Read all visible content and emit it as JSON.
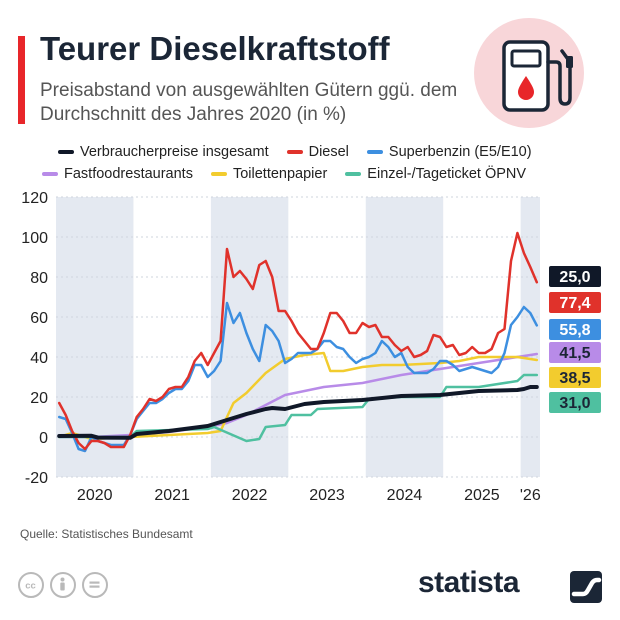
{
  "header": {
    "title": "Teurer Dieselkraftstoff",
    "subtitle": "Preisabstand von ausgewählten Gütern ggü. dem Durchschnitt des Jahres 2020 (in %)"
  },
  "footer": {
    "source": "Quelle: Statistisches Bundesamt",
    "brand": "statista"
  },
  "icons": {
    "hero": "fuel-pump-icon",
    "licenses": [
      "creative-commons-icon",
      "attribution-icon",
      "no-derivatives-icon"
    ],
    "brand_logo": "statista-logo-icon"
  },
  "colors": {
    "accent": "#e8262a",
    "shade": "#e4e9f1"
  },
  "chart_data": {
    "type": "line",
    "title": "Teurer Dieselkraftstoff",
    "subtitle": "Preisabstand von ausgewählten Gütern ggü. dem Durchschnitt des Jahres 2020 (in %)",
    "xlabel": "",
    "ylabel": "",
    "ylim": [
      -20,
      120
    ],
    "yticks": [
      -20,
      0,
      20,
      40,
      60,
      80,
      100,
      120
    ],
    "grid": true,
    "legend_position": "top",
    "x_tick_labels": [
      "2020",
      "2021",
      "2022",
      "2023",
      "2024",
      "2025",
      "'26"
    ],
    "x_start": "2020-01",
    "x_end": "2026-03",
    "shaded_periods": [
      [
        "2020-01",
        "2020-12"
      ],
      [
        "2022-01",
        "2022-12"
      ],
      [
        "2024-01",
        "2024-12"
      ],
      [
        "2026-01",
        "2026-03"
      ]
    ],
    "series": [
      {
        "name": "Verbraucherpreise insgesamt",
        "color": "#101828",
        "end_label": "25,0",
        "points": [
          [
            "2020-01",
            0.5
          ],
          [
            "2020-06",
            0.6
          ],
          [
            "2020-07",
            -0.3
          ],
          [
            "2020-12",
            -0.4
          ],
          [
            "2021-01",
            1.5
          ],
          [
            "2021-06",
            3
          ],
          [
            "2021-12",
            5.5
          ],
          [
            "2022-03",
            8.5
          ],
          [
            "2022-06",
            11.5
          ],
          [
            "2022-09",
            14
          ],
          [
            "2022-10",
            14.5
          ],
          [
            "2022-12",
            14
          ],
          [
            "2023-03",
            16.5
          ],
          [
            "2023-06",
            17.5
          ],
          [
            "2023-12",
            18.5
          ],
          [
            "2024-06",
            20.5
          ],
          [
            "2024-12",
            21
          ],
          [
            "2025-06",
            23
          ],
          [
            "2025-12",
            23.5
          ],
          [
            "2026-01",
            24
          ],
          [
            "2026-02",
            25
          ],
          [
            "2026-03",
            25
          ]
        ]
      },
      {
        "name": "Diesel",
        "color": "#e0322b",
        "end_label": "77,4",
        "points": [
          [
            "2020-01",
            17
          ],
          [
            "2020-02",
            11
          ],
          [
            "2020-03",
            3
          ],
          [
            "2020-04",
            -3
          ],
          [
            "2020-05",
            -6
          ],
          [
            "2020-06",
            -2
          ],
          [
            "2020-07",
            -2
          ],
          [
            "2020-08",
            -3
          ],
          [
            "2020-09",
            -5
          ],
          [
            "2020-10",
            -5
          ],
          [
            "2020-11",
            -5
          ],
          [
            "2020-12",
            1
          ],
          [
            "2021-01",
            10
          ],
          [
            "2021-02",
            14
          ],
          [
            "2021-03",
            19
          ],
          [
            "2021-04",
            18
          ],
          [
            "2021-05",
            20
          ],
          [
            "2021-06",
            24
          ],
          [
            "2021-07",
            25
          ],
          [
            "2021-08",
            25
          ],
          [
            "2021-09",
            30
          ],
          [
            "2021-10",
            38
          ],
          [
            "2021-11",
            42
          ],
          [
            "2021-12",
            36
          ],
          [
            "2022-01",
            42
          ],
          [
            "2022-02",
            48
          ],
          [
            "2022-03",
            94
          ],
          [
            "2022-04",
            80
          ],
          [
            "2022-05",
            83
          ],
          [
            "2022-06",
            79
          ],
          [
            "2022-07",
            74
          ],
          [
            "2022-08",
            86
          ],
          [
            "2022-09",
            88
          ],
          [
            "2022-10",
            80
          ],
          [
            "2022-11",
            63
          ],
          [
            "2022-12",
            63
          ],
          [
            "2023-01",
            58
          ],
          [
            "2023-02",
            52
          ],
          [
            "2023-03",
            48
          ],
          [
            "2023-04",
            44
          ],
          [
            "2023-05",
            44
          ],
          [
            "2023-06",
            52
          ],
          [
            "2023-07",
            62
          ],
          [
            "2023-08",
            62
          ],
          [
            "2023-09",
            58
          ],
          [
            "2023-10",
            52
          ],
          [
            "2023-11",
            52
          ],
          [
            "2023-12",
            57
          ],
          [
            "2024-01",
            55
          ],
          [
            "2024-02",
            56
          ],
          [
            "2024-03",
            50
          ],
          [
            "2024-04",
            50
          ],
          [
            "2024-05",
            46
          ],
          [
            "2024-06",
            43
          ],
          [
            "2024-07",
            45
          ],
          [
            "2024-08",
            40
          ],
          [
            "2024-09",
            41
          ],
          [
            "2024-10",
            43
          ],
          [
            "2024-11",
            51
          ],
          [
            "2024-12",
            50
          ],
          [
            "2025-01",
            45
          ],
          [
            "2025-02",
            46
          ],
          [
            "2025-03",
            41
          ],
          [
            "2025-04",
            42
          ],
          [
            "2025-05",
            45
          ],
          [
            "2025-06",
            42
          ],
          [
            "2025-07",
            42
          ],
          [
            "2025-08",
            44
          ],
          [
            "2025-09",
            52
          ],
          [
            "2025-10",
            54
          ],
          [
            "2025-11",
            88
          ],
          [
            "2025-12",
            102
          ],
          [
            "2026-01",
            92
          ],
          [
            "2026-02",
            85
          ],
          [
            "2026-03",
            77.4
          ]
        ]
      },
      {
        "name": "Superbenzin (E5/E10)",
        "color": "#3d8fe0",
        "end_label": "55,8",
        "points": [
          [
            "2020-01",
            10
          ],
          [
            "2020-02",
            9
          ],
          [
            "2020-03",
            2
          ],
          [
            "2020-04",
            -6
          ],
          [
            "2020-05",
            -7
          ],
          [
            "2020-06",
            0
          ],
          [
            "2020-07",
            -2
          ],
          [
            "2020-08",
            -3
          ],
          [
            "2020-09",
            -4
          ],
          [
            "2020-10",
            -4
          ],
          [
            "2020-11",
            -4
          ],
          [
            "2020-12",
            1
          ],
          [
            "2021-01",
            9
          ],
          [
            "2021-02",
            13
          ],
          [
            "2021-03",
            17
          ],
          [
            "2021-04",
            17
          ],
          [
            "2021-05",
            19
          ],
          [
            "2021-06",
            22
          ],
          [
            "2021-07",
            24
          ],
          [
            "2021-08",
            24
          ],
          [
            "2021-09",
            28
          ],
          [
            "2021-10",
            36
          ],
          [
            "2021-11",
            36
          ],
          [
            "2021-12",
            30
          ],
          [
            "2022-01",
            33
          ],
          [
            "2022-02",
            38
          ],
          [
            "2022-03",
            67
          ],
          [
            "2022-04",
            57
          ],
          [
            "2022-05",
            62
          ],
          [
            "2022-06",
            52
          ],
          [
            "2022-07",
            44
          ],
          [
            "2022-08",
            38
          ],
          [
            "2022-09",
            56
          ],
          [
            "2022-10",
            53
          ],
          [
            "2022-11",
            48
          ],
          [
            "2022-12",
            37
          ],
          [
            "2023-01",
            39
          ],
          [
            "2023-02",
            42
          ],
          [
            "2023-03",
            42
          ],
          [
            "2023-04",
            42
          ],
          [
            "2023-05",
            44
          ],
          [
            "2023-06",
            48
          ],
          [
            "2023-07",
            48
          ],
          [
            "2023-08",
            45
          ],
          [
            "2023-09",
            44
          ],
          [
            "2023-10",
            40
          ],
          [
            "2023-11",
            37
          ],
          [
            "2023-12",
            39
          ],
          [
            "2024-01",
            40
          ],
          [
            "2024-02",
            42
          ],
          [
            "2024-03",
            48
          ],
          [
            "2024-04",
            45
          ],
          [
            "2024-05",
            40
          ],
          [
            "2024-06",
            42
          ],
          [
            "2024-07",
            35
          ],
          [
            "2024-08",
            32
          ],
          [
            "2024-09",
            32
          ],
          [
            "2024-10",
            32
          ],
          [
            "2024-11",
            34
          ],
          [
            "2024-12",
            38
          ],
          [
            "2025-01",
            38
          ],
          [
            "2025-02",
            36
          ],
          [
            "2025-03",
            33
          ],
          [
            "2025-04",
            34
          ],
          [
            "2025-05",
            35
          ],
          [
            "2025-06",
            34
          ],
          [
            "2025-07",
            33
          ],
          [
            "2025-08",
            32
          ],
          [
            "2025-09",
            35
          ],
          [
            "2025-10",
            42
          ],
          [
            "2025-11",
            56
          ],
          [
            "2025-12",
            60
          ],
          [
            "2026-01",
            65
          ],
          [
            "2026-02",
            62
          ],
          [
            "2026-03",
            55.8
          ]
        ]
      },
      {
        "name": "Fastfoodrestaurants",
        "color": "#b88be8",
        "end_label": "41,5",
        "points": [
          [
            "2020-01",
            0
          ],
          [
            "2020-06",
            0
          ],
          [
            "2020-12",
            1
          ],
          [
            "2021-06",
            2.5
          ],
          [
            "2021-12",
            5
          ],
          [
            "2022-03",
            7
          ],
          [
            "2022-06",
            11
          ],
          [
            "2022-09",
            16
          ],
          [
            "2022-12",
            21
          ],
          [
            "2023-03",
            23
          ],
          [
            "2023-06",
            25
          ],
          [
            "2023-12",
            27
          ],
          [
            "2024-03",
            29
          ],
          [
            "2024-06",
            31
          ],
          [
            "2024-12",
            34
          ],
          [
            "2025-06",
            37
          ],
          [
            "2025-12",
            40
          ],
          [
            "2026-03",
            41.5
          ]
        ]
      },
      {
        "name": "Toilettenpapier",
        "color": "#f2cc2e",
        "end_label": "38,5",
        "points": [
          [
            "2020-01",
            0
          ],
          [
            "2020-03",
            2
          ],
          [
            "2020-06",
            -1
          ],
          [
            "2020-12",
            0
          ],
          [
            "2021-06",
            1
          ],
          [
            "2021-12",
            2
          ],
          [
            "2022-02",
            3
          ],
          [
            "2022-03",
            10
          ],
          [
            "2022-04",
            17
          ],
          [
            "2022-06",
            22
          ],
          [
            "2022-09",
            32
          ],
          [
            "2022-12",
            39
          ],
          [
            "2023-03",
            41
          ],
          [
            "2023-06",
            42
          ],
          [
            "2023-07",
            33
          ],
          [
            "2023-09",
            33
          ],
          [
            "2023-12",
            35
          ],
          [
            "2024-03",
            36
          ],
          [
            "2024-06",
            36
          ],
          [
            "2024-12",
            37
          ],
          [
            "2025-03",
            38
          ],
          [
            "2025-06",
            40
          ],
          [
            "2025-12",
            40
          ],
          [
            "2026-03",
            38.5
          ]
        ]
      },
      {
        "name": "Einzel-/Tageticket ÖPNV",
        "color": "#4fc0a0",
        "end_label": "31,0",
        "points": [
          [
            "2020-01",
            0
          ],
          [
            "2020-12",
            0
          ],
          [
            "2021-01",
            3
          ],
          [
            "2021-12",
            4
          ],
          [
            "2022-01",
            5
          ],
          [
            "2022-06",
            -2
          ],
          [
            "2022-08",
            -1
          ],
          [
            "2022-09",
            5
          ],
          [
            "2022-12",
            6
          ],
          [
            "2023-01",
            11
          ],
          [
            "2023-04",
            11
          ],
          [
            "2023-05",
            14
          ],
          [
            "2023-12",
            15
          ],
          [
            "2024-01",
            19
          ],
          [
            "2024-06",
            20
          ],
          [
            "2024-12",
            20
          ],
          [
            "2025-01",
            25
          ],
          [
            "2025-06",
            25
          ],
          [
            "2025-12",
            28
          ],
          [
            "2026-01",
            31
          ],
          [
            "2026-03",
            31
          ]
        ]
      }
    ]
  }
}
